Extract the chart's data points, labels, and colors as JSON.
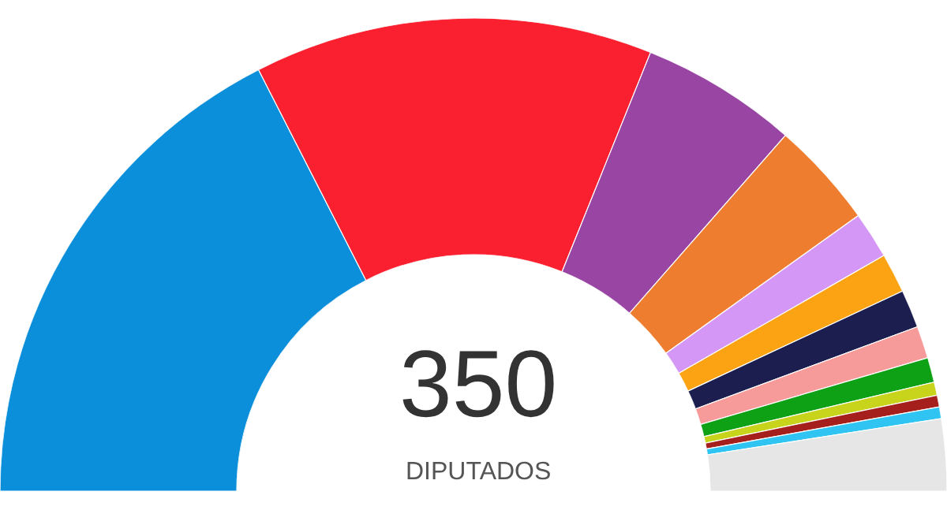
{
  "chart_data": {
    "type": "donut",
    "categories": [
      null,
      null,
      null,
      null,
      null,
      null,
      null,
      null,
      null,
      null,
      null,
      null,
      null
    ],
    "values": [
      35.0,
      27.2,
      10.7,
      7.3,
      3.2,
      2.7,
      2.6,
      2.2,
      1.7,
      0.9,
      0.8,
      0.8,
      4.9
    ],
    "colors": [
      "#0b8fdb",
      "#fb202f",
      "#9945a3",
      "#ef7d2f",
      "#d597f5",
      "#fba313",
      "#1b1e4f",
      "#f79a9a",
      "#0ea015",
      "#c8d41c",
      "#a5201c",
      "#2fc4f2",
      "#e6e6e6"
    ],
    "annotations": [
      "350",
      "DIPUTADOS"
    ]
  }
}
